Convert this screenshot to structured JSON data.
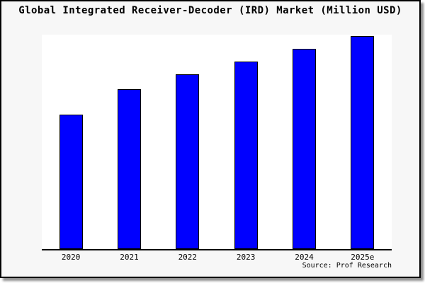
{
  "figure": {
    "title": "Global Integrated Receiver-Decoder (IRD) Market (Million USD)",
    "source_label": "Source: Prof Research",
    "background_color": "#f7f7f7",
    "plot_background_color": "#ffffff",
    "border_color": "#000000"
  },
  "chart_data": {
    "type": "bar",
    "title": "Global Integrated Receiver-Decoder (IRD) Market (Million USD)",
    "categories": [
      "2020",
      "2021",
      "2022",
      "2023",
      "2024",
      "2025e"
    ],
    "values": [
      63,
      75,
      82,
      88,
      94,
      100
    ],
    "values_note": "relative units estimated from bar heights; y-axis has no ticks or labels in the image",
    "xlabel": "",
    "ylabel": "",
    "ylim": [
      0,
      100.7
    ],
    "y_axis_visible": false,
    "grid": false,
    "legend": false,
    "bar_color": "#0000ff",
    "bar_border_color": "#000000",
    "source": "Source: Prof Research"
  }
}
